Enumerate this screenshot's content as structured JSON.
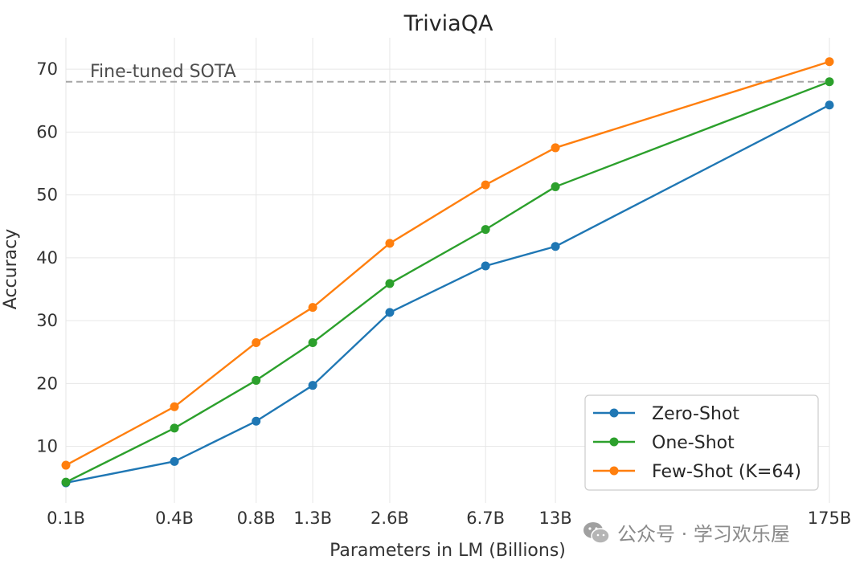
{
  "chart_data": {
    "type": "line",
    "title": "TriviaQA",
    "xlabel": "Parameters in LM (Billions)",
    "ylabel": "Accuracy",
    "categories": [
      "0.1B",
      "0.4B",
      "0.8B",
      "1.3B",
      "2.6B",
      "6.7B",
      "13B",
      "175B"
    ],
    "x": [
      0.125,
      0.35,
      0.76,
      1.3,
      2.7,
      6.7,
      13,
      175
    ],
    "x_scale": "log",
    "ylim": [
      1,
      75
    ],
    "yticks": [
      10,
      20,
      30,
      40,
      50,
      60,
      70
    ],
    "grid": true,
    "legend_position": "lower-right",
    "series": [
      {
        "name": "Zero-Shot",
        "color": "#1f77b4",
        "values": [
          4.2,
          7.6,
          14.0,
          19.7,
          31.3,
          38.7,
          41.8,
          64.3
        ]
      },
      {
        "name": "One-Shot",
        "color": "#2ca02c",
        "values": [
          4.3,
          12.9,
          20.5,
          26.5,
          35.9,
          44.5,
          51.3,
          68.0
        ]
      },
      {
        "name": "Few-Shot (K=64)",
        "color": "#ff7f0e",
        "values": [
          7.0,
          16.3,
          26.5,
          32.1,
          42.3,
          51.6,
          57.5,
          71.2
        ]
      }
    ],
    "reference_line": {
      "label": "Fine-tuned SOTA",
      "value": 68.0,
      "color": "#a6a6a6"
    }
  },
  "watermark": {
    "text": "公众号 · 学习欢乐屋",
    "icon": "wechat-icon"
  }
}
